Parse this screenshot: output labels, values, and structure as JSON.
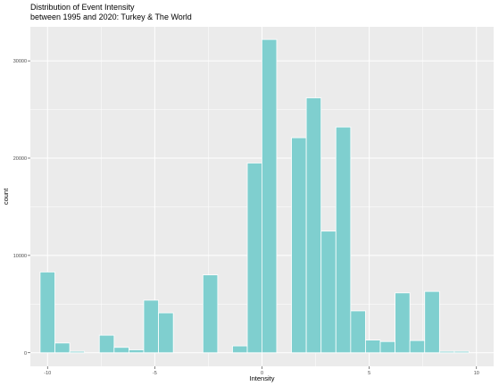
{
  "chart_data": {
    "type": "bar",
    "subtype": "histogram",
    "title": "Distribution of Event Intensity",
    "subtitle": "between 1995 and 2020: Turkey & The World",
    "xlabel": "Intensity",
    "ylabel": "count",
    "xlim": [
      -10.8,
      10.8
    ],
    "ylim": [
      -1400,
      33500
    ],
    "x_ticks": [
      -10,
      -5,
      0,
      5,
      10
    ],
    "x_tick_labels": [
      "-10",
      "-5",
      "0",
      "5",
      "10"
    ],
    "y_ticks": [
      0,
      10000,
      20000,
      30000
    ],
    "y_tick_labels": [
      "0",
      "10000",
      "20000",
      "30000"
    ],
    "grid": true,
    "bin_width": 0.69,
    "bin_centers": [
      -10.0,
      -9.31,
      -8.62,
      -7.93,
      -7.24,
      -6.55,
      -5.86,
      -5.17,
      -4.48,
      -3.79,
      -3.1,
      -2.41,
      -1.72,
      -1.03,
      -0.34,
      0.34,
      1.03,
      1.72,
      2.41,
      3.1,
      3.79,
      4.48,
      5.17,
      5.86,
      6.55,
      7.24,
      7.93,
      8.62,
      9.31,
      10.0
    ],
    "values": [
      8300,
      1000,
      150,
      0,
      1800,
      550,
      300,
      5400,
      4100,
      0,
      0,
      8000,
      0,
      700,
      19500,
      32200,
      0,
      22100,
      26200,
      12500,
      23200,
      4300,
      1300,
      1150,
      6150,
      1250,
      6300,
      150,
      150,
      0
    ],
    "bar_fill": "#7fcfcf",
    "bar_outline": "#ffffff",
    "panel_background": "#ebebeb",
    "grid_color": "#ffffff"
  }
}
